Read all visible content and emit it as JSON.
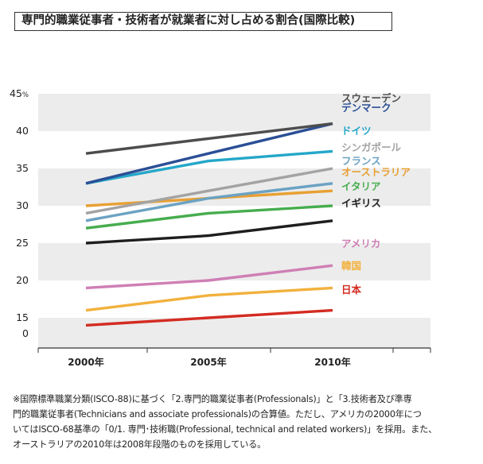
{
  "chart_data": {
    "type": "line",
    "title": "専門的職業従事者・技術者が就業者に対し占める割合(国際比較)",
    "xlabel": "",
    "ylabel": "",
    "ylim": [
      0,
      45
    ],
    "y_ticks": [
      {
        "value": 45,
        "label": "45",
        "unit": "%"
      },
      {
        "value": 40,
        "label": "40"
      },
      {
        "value": 35,
        "label": "35"
      },
      {
        "value": 30,
        "label": "30"
      },
      {
        "value": 25,
        "label": "25"
      },
      {
        "value": 20,
        "label": "20"
      },
      {
        "value": 15,
        "label": "15"
      },
      {
        "value": 0,
        "label": "0"
      }
    ],
    "categories": [
      "2000年",
      "2005年",
      "2010年"
    ],
    "legend": "inline-right",
    "series": [
      {
        "name": "スウェーデン",
        "values": [
          37,
          39,
          41
        ],
        "color": "#4d4d4d"
      },
      {
        "name": "デンマーク",
        "values": [
          33,
          37,
          41
        ],
        "color": "#2b4f96"
      },
      {
        "name": "ドイツ",
        "values": [
          33,
          36,
          37.3
        ],
        "color": "#25a7c9"
      },
      {
        "name": "シンガポール",
        "values": [
          29,
          32,
          35
        ],
        "color": "#a3a3a3"
      },
      {
        "name": "フランス",
        "values": [
          28,
          31,
          33
        ],
        "color": "#6ba2c3"
      },
      {
        "name": "オーストラリア",
        "values": [
          30,
          31,
          32
        ],
        "color": "#e8a033"
      },
      {
        "name": "イタリア",
        "values": [
          27,
          29,
          30
        ],
        "color": "#47ad4e"
      },
      {
        "name": "イギリス",
        "values": [
          25,
          26,
          28
        ],
        "color": "#1e1e1e"
      },
      {
        "name": "アメリカ",
        "values": [
          19,
          20,
          22
        ],
        "color": "#cf7fb5"
      },
      {
        "name": "韓国",
        "values": [
          16,
          18,
          19
        ],
        "color": "#f2b13d"
      },
      {
        "name": "日本",
        "values": [
          14,
          15,
          16
        ],
        "color": "#d32c22"
      }
    ]
  },
  "footnote": {
    "lines": [
      "※国際標準職業分類(ISCO-88)に基づく「2.専門的職業従事者(Professionals)」と「3.技術者及び準専",
      "門的職業従事者(Technicians and associate professionals)の合算値。ただし、アメリカの2000年につ",
      "いてはISCO-68基準の「0/1. 専門･技術職(Professional, technical and related workers)」を採用。また、",
      "オーストラリアの2010年は2008年段階のものを採用している。"
    ]
  }
}
